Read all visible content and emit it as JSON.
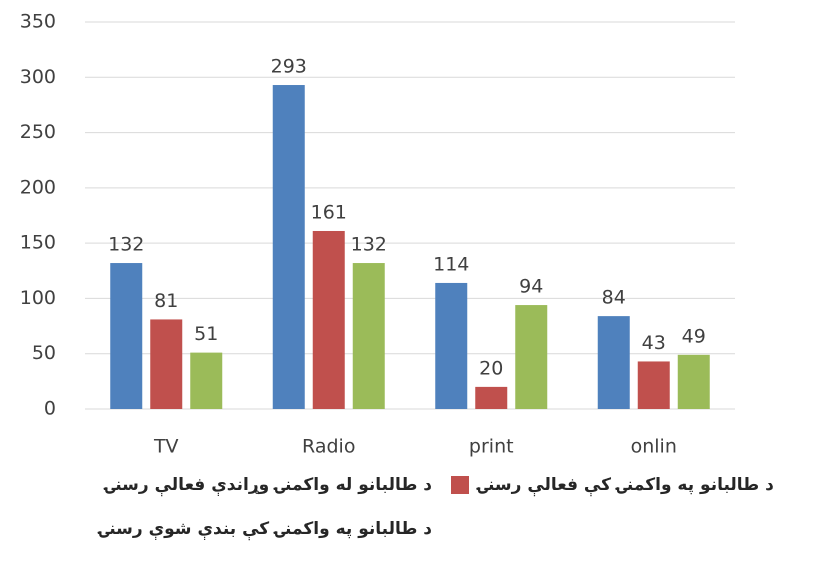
{
  "chart_data": {
    "type": "bar",
    "categories": [
      "TV",
      "Radio",
      "print",
      "onlin"
    ],
    "series": [
      {
        "name": "د طالبانو له واکمنۍ وړاندې فعالې رسنۍ",
        "color": "#4f81bd",
        "values": [
          132,
          293,
          114,
          84
        ]
      },
      {
        "name": "د طالبانو په واکمنۍ کې فعالې رسنۍ",
        "color": "#c0504d",
        "values": [
          81,
          161,
          20,
          43
        ]
      },
      {
        "name": "د طالبانو په واکمنۍ کې بندې شوې رسنۍ",
        "color": "#9bbb59",
        "values": [
          51,
          132,
          94,
          49
        ]
      }
    ],
    "ylim": [
      0,
      350
    ],
    "yticks": [
      0,
      50,
      100,
      150,
      200,
      250,
      300,
      350
    ],
    "grid": true
  }
}
